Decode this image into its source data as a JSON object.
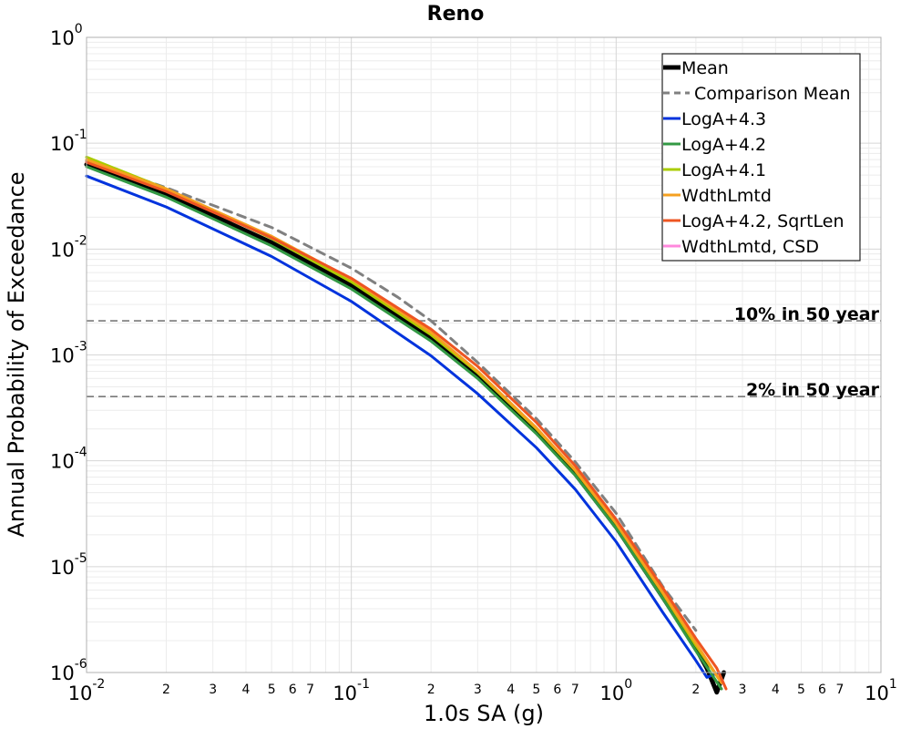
{
  "chart_data": {
    "type": "line",
    "title": "Reno",
    "xlabel": "1.0s SA (g)",
    "ylabel": "Annual Probability of Exceedance",
    "xscale": "log",
    "yscale": "log",
    "xlim": [
      0.01,
      10
    ],
    "ylim": [
      1e-06,
      1
    ],
    "grid": true,
    "legend_position": "top-right",
    "x_major_ticks": [
      {
        "base": "10",
        "exp": "-2",
        "value": 0.01
      },
      {
        "base": "10",
        "exp": "-1",
        "value": 0.1
      },
      {
        "base": "10",
        "exp": "0",
        "value": 1
      },
      {
        "base": "10",
        "exp": "1",
        "value": 10
      }
    ],
    "x_minor_tick_labels": [
      "2",
      "3",
      "4",
      "5",
      "6",
      "7"
    ],
    "y_major_ticks": [
      {
        "base": "10",
        "exp": "0",
        "value": 1
      },
      {
        "base": "10",
        "exp": "-1",
        "value": 0.1
      },
      {
        "base": "10",
        "exp": "-2",
        "value": 0.01
      },
      {
        "base": "10",
        "exp": "-3",
        "value": 0.001
      },
      {
        "base": "10",
        "exp": "-4",
        "value": 0.0001
      },
      {
        "base": "10",
        "exp": "-5",
        "value": 1e-05
      },
      {
        "base": "10",
        "exp": "-6",
        "value": 1e-06
      }
    ],
    "reference_lines": [
      {
        "label": "10% in 50 year",
        "y": 0.0021
      },
      {
        "label": "2% in 50 year",
        "y": 0.000404
      }
    ],
    "series": [
      {
        "name": "Mean",
        "color": "#000000",
        "width": 5,
        "dash": "",
        "x": [
          0.01,
          0.02,
          0.05,
          0.1,
          0.2,
          0.3,
          0.5,
          0.7,
          1,
          1.5,
          2,
          2.2,
          2.4,
          2.55
        ],
        "y": [
          0.063,
          0.033,
          0.0115,
          0.0045,
          0.00145,
          0.00063,
          0.000187,
          7.55e-05,
          2.37e-05,
          5.15e-06,
          1.7e-06,
          1.1e-06,
          6.5e-07,
          1e-06
        ]
      },
      {
        "name": "Comparison Mean",
        "color": "#808080",
        "width": 3,
        "dash": "9,7",
        "x": [
          0.01,
          0.02,
          0.05,
          0.1,
          0.15,
          0.2,
          0.3,
          0.5,
          0.7,
          1,
          1.5,
          2
        ],
        "y": [
          0.068,
          0.038,
          0.016,
          0.0066,
          0.0035,
          0.0021,
          0.00085,
          0.00025,
          9.8e-05,
          3.2e-05,
          6.5e-06,
          2.5e-06
        ]
      },
      {
        "name": "LogA+4.3",
        "color": "#0033dd",
        "width": 3,
        "dash": "",
        "x": [
          0.01,
          0.02,
          0.05,
          0.1,
          0.2,
          0.3,
          0.5,
          0.7,
          1,
          1.5,
          2,
          2.2,
          2.45
        ],
        "y": [
          0.049,
          0.025,
          0.0085,
          0.0032,
          0.00098,
          0.00043,
          0.000133,
          5.4e-05,
          1.72e-05,
          3.7e-06,
          1.3e-06,
          9e-07,
          1e-06
        ]
      },
      {
        "name": "LogA+4.2",
        "color": "#339944",
        "width": 3,
        "dash": "",
        "x": [
          0.01,
          0.02,
          0.05,
          0.1,
          0.2,
          0.3,
          0.5,
          0.7,
          1,
          1.5,
          2,
          2.5
        ],
        "y": [
          0.06,
          0.031,
          0.0107,
          0.0042,
          0.00135,
          0.0006,
          0.00018,
          7.3e-05,
          2.3e-05,
          5e-06,
          1.6e-06,
          7e-07
        ]
      },
      {
        "name": "LogA+4.1",
        "color": "#aacc00",
        "width": 3,
        "dash": "",
        "x": [
          0.01,
          0.02,
          0.05,
          0.1,
          0.2,
          0.3,
          0.5,
          0.7,
          1,
          1.5,
          2,
          2.5
        ],
        "y": [
          0.074,
          0.037,
          0.0126,
          0.0049,
          0.00155,
          0.00068,
          0.0002,
          8.1e-05,
          2.55e-05,
          5.6e-06,
          1.8e-06,
          8e-07
        ]
      },
      {
        "name": "WdthLmtd",
        "color": "#f5a020",
        "width": 3,
        "dash": "",
        "x": [
          0.01,
          0.02,
          0.05,
          0.1,
          0.2,
          0.3,
          0.5,
          0.7,
          1,
          1.5,
          2,
          2.5
        ],
        "y": [
          0.07,
          0.037,
          0.0132,
          0.0052,
          0.00163,
          0.0007,
          0.000205,
          8.2e-05,
          2.58e-05,
          5.7e-06,
          1.9e-06,
          8e-07
        ]
      },
      {
        "name": "LogA+4.2, SqrtLen",
        "color": "#ee5522",
        "width": 3,
        "dash": "",
        "x": [
          0.01,
          0.02,
          0.05,
          0.1,
          0.2,
          0.3,
          0.5,
          0.7,
          1,
          1.5,
          2,
          2.4,
          2.6
        ],
        "y": [
          0.066,
          0.035,
          0.0128,
          0.0053,
          0.00175,
          0.00078,
          0.00023,
          9e-05,
          2.8e-05,
          6.3e-06,
          2.1e-06,
          1.1e-06,
          7e-07
        ]
      },
      {
        "name": "WdthLmtd, CSD",
        "color": "#ff88dd",
        "width": 3,
        "dash": "",
        "x": [],
        "y": []
      }
    ]
  }
}
